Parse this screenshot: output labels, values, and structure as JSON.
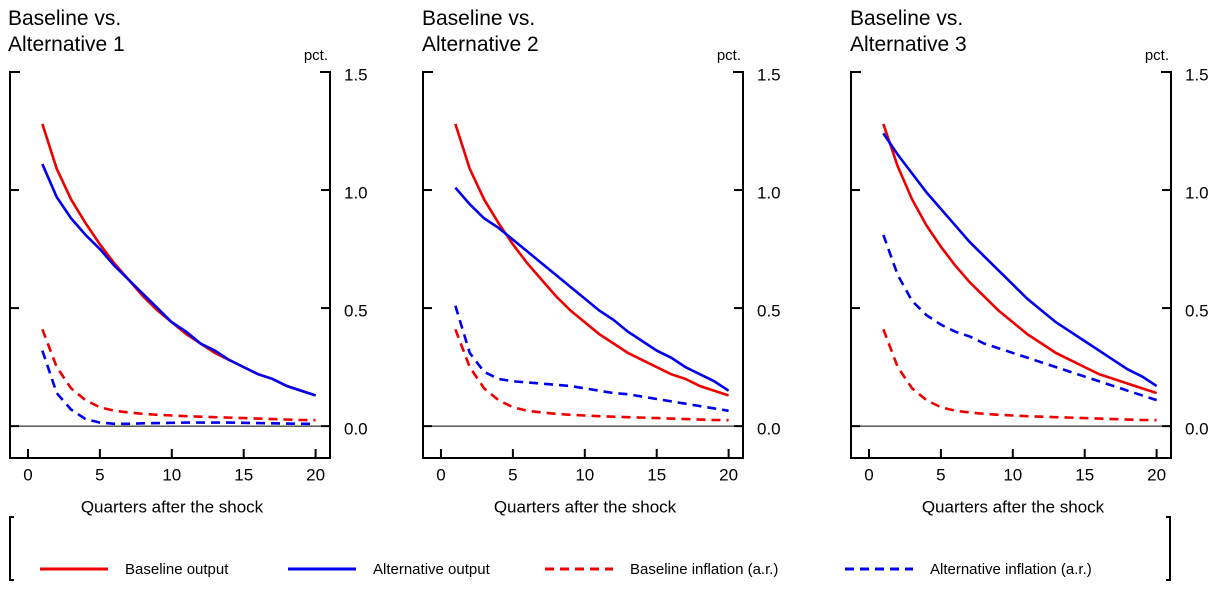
{
  "chart_data": [
    {
      "type": "line",
      "title": "Baseline vs. Alternative 1",
      "xlabel": "Quarters after the shock",
      "ylabel": "pct.",
      "x": [
        1,
        2,
        3,
        4,
        5,
        6,
        7,
        8,
        9,
        10,
        11,
        12,
        13,
        14,
        15,
        16,
        17,
        18,
        19,
        20
      ],
      "series": [
        {
          "name": "Baseline output",
          "color": "#ee0000",
          "linestyle": "solid",
          "values": [
            1.28,
            1.09,
            0.96,
            0.86,
            0.77,
            0.69,
            0.62,
            0.55,
            0.49,
            0.44,
            0.39,
            0.35,
            0.31,
            0.28,
            0.25,
            0.22,
            0.2,
            0.17,
            0.15,
            0.13
          ]
        },
        {
          "name": "Alternative output",
          "color": "#0000ee",
          "linestyle": "solid",
          "values": [
            1.11,
            0.97,
            0.88,
            0.81,
            0.75,
            0.68,
            0.62,
            0.56,
            0.5,
            0.44,
            0.4,
            0.35,
            0.32,
            0.28,
            0.25,
            0.22,
            0.2,
            0.17,
            0.15,
            0.13
          ]
        },
        {
          "name": "Baseline inflation (a.r.)",
          "color": "#ee0000",
          "linestyle": "dashed",
          "values": [
            0.41,
            0.25,
            0.16,
            0.11,
            0.08,
            0.065,
            0.058,
            0.052,
            0.048,
            0.045,
            0.042,
            0.04,
            0.038,
            0.036,
            0.034,
            0.032,
            0.03,
            0.028,
            0.026,
            0.025
          ]
        },
        {
          "name": "Alternative inflation (a.r.)",
          "color": "#0000ee",
          "linestyle": "dashed",
          "values": [
            0.32,
            0.14,
            0.07,
            0.03,
            0.015,
            0.01,
            0.01,
            0.012,
            0.013,
            0.014,
            0.015,
            0.015,
            0.015,
            0.015,
            0.014,
            0.013,
            0.012,
            0.011,
            0.01,
            0.01
          ]
        }
      ],
      "xlim": [
        -1.25,
        21
      ],
      "xticks": [
        0,
        5,
        10,
        15,
        20
      ],
      "ylim": [
        -0.135,
        1.5
      ],
      "yticks": [
        {
          "value": 0,
          "label": "0.0"
        },
        0.5,
        {
          "value": 1,
          "label": "1.0"
        },
        1.5
      ]
    },
    {
      "type": "line",
      "title": "Baseline vs. Alternative 2",
      "xlabel": "Quarters after the shock",
      "ylabel": "pct.",
      "x": [
        1,
        2,
        3,
        4,
        5,
        6,
        7,
        8,
        9,
        10,
        11,
        12,
        13,
        14,
        15,
        16,
        17,
        18,
        19,
        20
      ],
      "series": [
        {
          "color": "#ee0000",
          "linestyle": "solid",
          "values": [
            1.28,
            1.09,
            0.96,
            0.86,
            0.77,
            0.69,
            0.62,
            0.55,
            0.49,
            0.44,
            0.39,
            0.35,
            0.31,
            0.28,
            0.25,
            0.22,
            0.2,
            0.17,
            0.15,
            0.13
          ]
        },
        {
          "color": "#0000ee",
          "linestyle": "solid",
          "values": [
            1.01,
            0.94,
            0.88,
            0.84,
            0.79,
            0.74,
            0.69,
            0.64,
            0.59,
            0.54,
            0.49,
            0.45,
            0.4,
            0.36,
            0.32,
            0.29,
            0.25,
            0.22,
            0.19,
            0.15
          ]
        },
        {
          "color": "#ee0000",
          "linestyle": "dashed",
          "values": [
            0.41,
            0.25,
            0.16,
            0.11,
            0.08,
            0.065,
            0.058,
            0.052,
            0.048,
            0.045,
            0.042,
            0.04,
            0.038,
            0.036,
            0.034,
            0.032,
            0.03,
            0.028,
            0.026,
            0.025
          ]
        },
        {
          "color": "#0000ee",
          "linestyle": "dashed",
          "values": [
            0.51,
            0.31,
            0.23,
            0.2,
            0.19,
            0.185,
            0.18,
            0.175,
            0.17,
            0.16,
            0.15,
            0.14,
            0.135,
            0.125,
            0.115,
            0.105,
            0.095,
            0.085,
            0.075,
            0.065
          ]
        }
      ],
      "xlim": [
        -1.25,
        21
      ],
      "xticks": [
        0,
        5,
        10,
        15,
        20
      ],
      "ylim": [
        -0.135,
        1.5
      ],
      "yticks": [
        {
          "value": 0,
          "label": "0.0"
        },
        0.5,
        {
          "value": 1,
          "label": "1.0"
        },
        1.5
      ]
    },
    {
      "type": "line",
      "title": "Baseline vs. Alternative 3",
      "xlabel": "Quarters after the shock",
      "ylabel": "pct.",
      "x": [
        1,
        2,
        3,
        4,
        5,
        6,
        7,
        8,
        9,
        10,
        11,
        12,
        13,
        14,
        15,
        16,
        17,
        18,
        19,
        20
      ],
      "series": [
        {
          "color": "#ee0000",
          "linestyle": "solid",
          "values": [
            1.28,
            1.1,
            0.96,
            0.85,
            0.76,
            0.68,
            0.61,
            0.55,
            0.49,
            0.44,
            0.39,
            0.35,
            0.31,
            0.28,
            0.25,
            0.22,
            0.2,
            0.18,
            0.16,
            0.14
          ]
        },
        {
          "color": "#0000ee",
          "linestyle": "solid",
          "values": [
            1.24,
            1.15,
            1.07,
            0.99,
            0.92,
            0.85,
            0.78,
            0.72,
            0.66,
            0.6,
            0.54,
            0.49,
            0.44,
            0.4,
            0.36,
            0.32,
            0.28,
            0.24,
            0.21,
            0.17
          ]
        },
        {
          "color": "#ee0000",
          "linestyle": "dashed",
          "values": [
            0.41,
            0.25,
            0.16,
            0.11,
            0.08,
            0.065,
            0.058,
            0.052,
            0.048,
            0.045,
            0.042,
            0.04,
            0.038,
            0.036,
            0.034,
            0.032,
            0.03,
            0.028,
            0.026,
            0.025
          ]
        },
        {
          "color": "#0000ee",
          "linestyle": "dashed",
          "values": [
            0.81,
            0.64,
            0.53,
            0.47,
            0.43,
            0.4,
            0.38,
            0.35,
            0.33,
            0.31,
            0.29,
            0.27,
            0.25,
            0.23,
            0.21,
            0.19,
            0.17,
            0.15,
            0.13,
            0.11
          ]
        }
      ],
      "xlim": [
        -1.25,
        21
      ],
      "xticks": [
        0,
        5,
        10,
        15,
        20
      ],
      "ylim": [
        -0.135,
        1.5
      ],
      "yticks": [
        {
          "value": 0,
          "label": "0.0"
        },
        0.5,
        {
          "value": 1,
          "label": "1.0"
        },
        1.5
      ]
    }
  ]
}
